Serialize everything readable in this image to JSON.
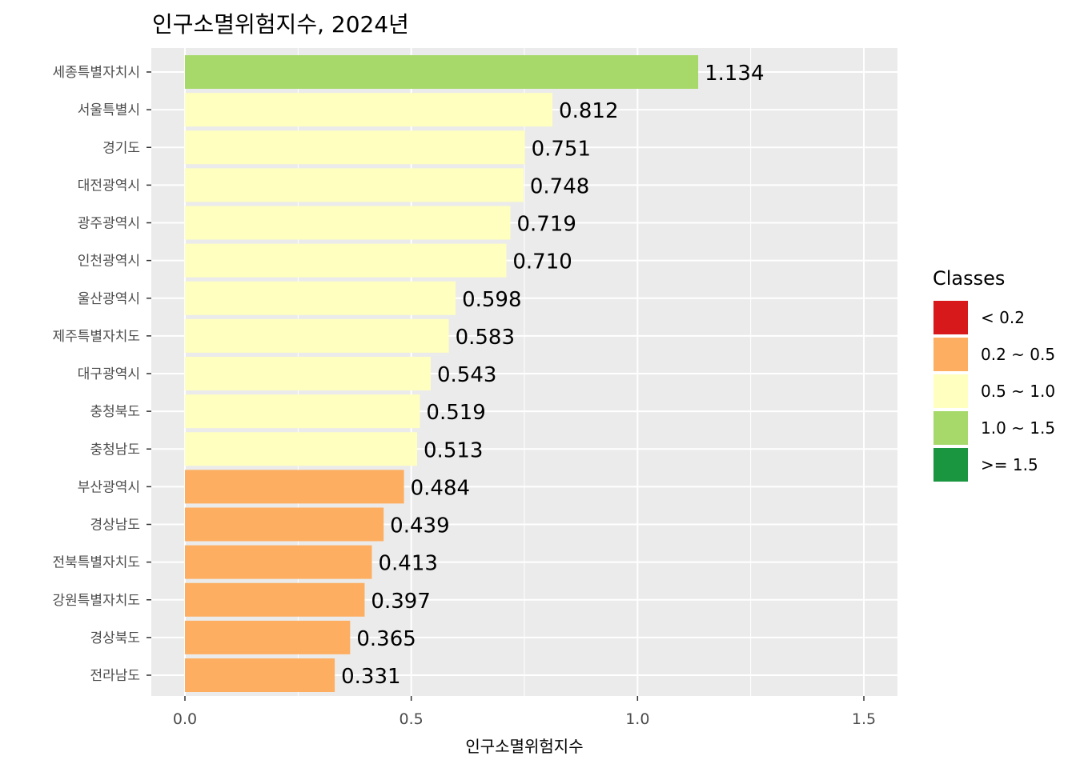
{
  "chart_data": {
    "type": "bar",
    "orientation": "horizontal",
    "title": "인구소멸위험지수, 2024년",
    "xlabel": "인구소멸위험지수",
    "ylabel": "",
    "xlim": [
      0,
      1.5
    ],
    "x_ticks": [
      "0.0",
      "0.5",
      "1.0",
      "1.5"
    ],
    "grid": true,
    "legend_position": "right",
    "categories": [
      "세종특별자치시",
      "서울특별시",
      "경기도",
      "대전광역시",
      "광주광역시",
      "인천광역시",
      "울산광역시",
      "제주특별자치도",
      "대구광역시",
      "충청북도",
      "충청남도",
      "부산광역시",
      "경상남도",
      "전북특별자치도",
      "강원특별자치도",
      "경상북도",
      "전라남도"
    ],
    "values": [
      1.134,
      0.812,
      0.751,
      0.748,
      0.719,
      0.71,
      0.598,
      0.583,
      0.543,
      0.519,
      0.513,
      0.484,
      0.439,
      0.413,
      0.397,
      0.365,
      0.331
    ],
    "value_labels": [
      "1.134",
      "0.812",
      "0.751",
      "0.748",
      "0.719",
      "0.710",
      "0.598",
      "0.583",
      "0.543",
      "0.519",
      "0.513",
      "0.484",
      "0.439",
      "0.413",
      "0.397",
      "0.365",
      "0.331"
    ],
    "legend": {
      "title": "Classes",
      "entries": [
        {
          "label": "< 0.2",
          "color": "#d7191c"
        },
        {
          "label": "0.2 ~ 0.5",
          "color": "#fdae61"
        },
        {
          "label": "0.5 ~ 1.0",
          "color": "#ffffbf"
        },
        {
          "label": "1.0 ~ 1.5",
          "color": "#a6d96a"
        },
        {
          "label": ">= 1.5",
          "color": "#1a9641"
        }
      ]
    },
    "colors": {
      "panel_background": "#ebebeb",
      "gridline": "#ffffff"
    }
  }
}
